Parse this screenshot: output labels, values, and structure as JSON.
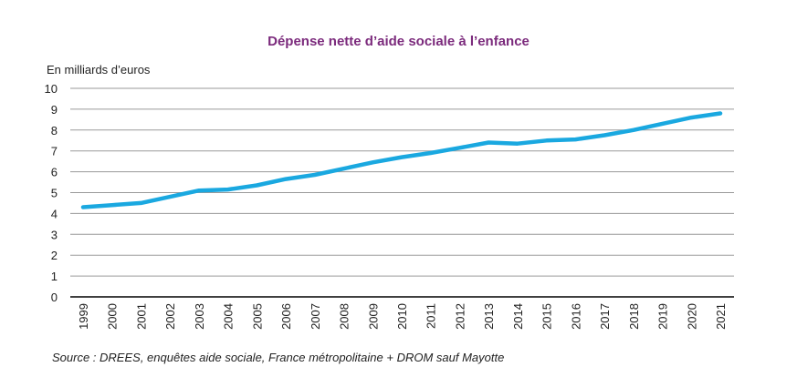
{
  "chart_data": {
    "type": "line",
    "title": "Dépense nette d’aide sociale à l’enfance",
    "ylabel": "En milliards d’euros",
    "xlabel": "",
    "ylim": [
      0,
      10
    ],
    "yticks": [
      "0",
      "1",
      "2",
      "3",
      "4",
      "5",
      "6",
      "7",
      "8",
      "9",
      "10"
    ],
    "grid": true,
    "categories": [
      "1999",
      "2000",
      "2001",
      "2002",
      "2003",
      "2004",
      "2005",
      "2006",
      "2007",
      "2008",
      "2009",
      "2010",
      "2011",
      "2012",
      "2013",
      "2014",
      "2015",
      "2016",
      "2017",
      "2018",
      "2019",
      "2020",
      "2021"
    ],
    "series": [
      {
        "values": [
          4.3,
          4.4,
          4.5,
          4.8,
          5.1,
          5.15,
          5.35,
          5.65,
          5.85,
          6.15,
          6.45,
          6.7,
          6.9,
          7.15,
          7.4,
          7.35,
          7.5,
          7.55,
          7.75,
          8.0,
          8.3,
          8.6,
          8.8
        ],
        "color": "#1aa8e0"
      }
    ],
    "source": "Source : DREES, enquêtes aide sociale, France métropolitaine + DROM sauf Mayotte"
  }
}
